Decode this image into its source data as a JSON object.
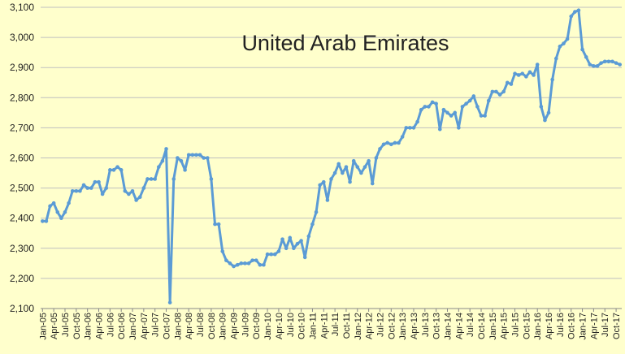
{
  "chart_data": {
    "type": "line",
    "title": "United Arab Emirates",
    "color": "#5b9bd5",
    "grid": true,
    "categories": [
      "Jan-05",
      null,
      null,
      "Apr-05",
      null,
      null,
      "Jul-05",
      null,
      null,
      "Oct-05",
      null,
      null,
      "Jan-06",
      null,
      null,
      "Apr-06",
      null,
      null,
      "Jul-06",
      null,
      null,
      "Oct-06",
      null,
      null,
      "Jan-07",
      null,
      null,
      "Apr-07",
      null,
      null,
      "Jul-07",
      null,
      null,
      "Oct-07",
      null,
      null,
      "Jan-08",
      null,
      null,
      "Apr-08",
      null,
      null,
      "Jul-08",
      null,
      null,
      "Oct-08",
      null,
      null,
      "Jan-09",
      null,
      null,
      "Apr-09",
      null,
      null,
      "Jul-09",
      null,
      null,
      "Oct-09",
      null,
      null,
      "Jan-10",
      null,
      null,
      "Apr-10",
      null,
      null,
      "Jul-10",
      null,
      null,
      "Oct-10",
      null,
      null,
      "Jan-11",
      null,
      null,
      "Apr-11",
      null,
      null,
      "Jul-11",
      null,
      null,
      "Oct-11",
      null,
      null,
      "Jan-12",
      null,
      null,
      "Apr-12",
      null,
      null,
      "Jul-12",
      null,
      null,
      "Oct-12",
      null,
      null,
      "Jan-13",
      null,
      null,
      "Apr-13",
      null,
      null,
      "Jul-13",
      null,
      null,
      "Oct-13",
      null,
      null,
      "Jan-14",
      null,
      null,
      "Apr-14",
      null,
      null,
      "Jul-14",
      null,
      null,
      "Oct-14",
      null,
      null,
      "Jan-15",
      null,
      null,
      "Apr-15",
      null,
      null,
      "Jul-15",
      null,
      null,
      "Oct-15",
      null,
      null,
      "Jan-16",
      null,
      null,
      "Apr-16",
      null,
      null,
      "Jul-16",
      null,
      null,
      "Oct-16",
      null,
      null,
      "Jan-17",
      null,
      null,
      "Apr-17",
      null,
      null,
      "Jul-17",
      null,
      null,
      "Oct-17",
      null
    ],
    "values": [
      2390,
      2390,
      2440,
      2450,
      2420,
      2400,
      2420,
      2450,
      2490,
      2490,
      2490,
      2510,
      2500,
      2500,
      2520,
      2520,
      2480,
      2500,
      2560,
      2560,
      2570,
      2560,
      2490,
      2480,
      2490,
      2460,
      2470,
      2500,
      2530,
      2530,
      2530,
      2570,
      2590,
      2630,
      2120,
      2530,
      2600,
      2590,
      2560,
      2610,
      2610,
      2610,
      2610,
      2600,
      2600,
      2530,
      2380,
      2380,
      2290,
      2260,
      2250,
      2240,
      2245,
      2250,
      2250,
      2250,
      2260,
      2260,
      2245,
      2245,
      2280,
      2280,
      2280,
      2290,
      2330,
      2300,
      2335,
      2300,
      2315,
      2325,
      2270,
      2340,
      2380,
      2420,
      2510,
      2520,
      2460,
      2530,
      2550,
      2580,
      2550,
      2570,
      2520,
      2590,
      2570,
      2550,
      2570,
      2590,
      2515,
      2600,
      2630,
      2645,
      2650,
      2645,
      2650,
      2650,
      2670,
      2700,
      2700,
      2700,
      2720,
      2760,
      2770,
      2770,
      2785,
      2780,
      2695,
      2760,
      2750,
      2740,
      2750,
      2700,
      2770,
      2780,
      2790,
      2805,
      2770,
      2740,
      2740,
      2790,
      2820,
      2820,
      2810,
      2820,
      2850,
      2845,
      2880,
      2875,
      2880,
      2870,
      2885,
      2875,
      2910,
      2770,
      2725,
      2750,
      2860,
      2930,
      2970,
      2980,
      2995,
      3070,
      3085,
      3090,
      2960,
      2935,
      2910,
      2905,
      2905,
      2915,
      2920,
      2920,
      2920,
      2915,
      2910
    ],
    "ylim": [
      2100,
      3100
    ],
    "yticks": [
      {
        "value": 2100,
        "label": "2,100"
      },
      {
        "value": 2200,
        "label": "2,200"
      },
      {
        "value": 2300,
        "label": "2,300"
      },
      {
        "value": 2400,
        "label": "2,400"
      },
      {
        "value": 2500,
        "label": "2,500"
      },
      {
        "value": 2600,
        "label": "2,600"
      },
      {
        "value": 2700,
        "label": "2,700"
      },
      {
        "value": 2800,
        "label": "2,800"
      },
      {
        "value": 2900,
        "label": "2,900"
      },
      {
        "value": 3000,
        "label": "3,000"
      },
      {
        "value": 3100,
        "label": "3,100"
      }
    ]
  }
}
